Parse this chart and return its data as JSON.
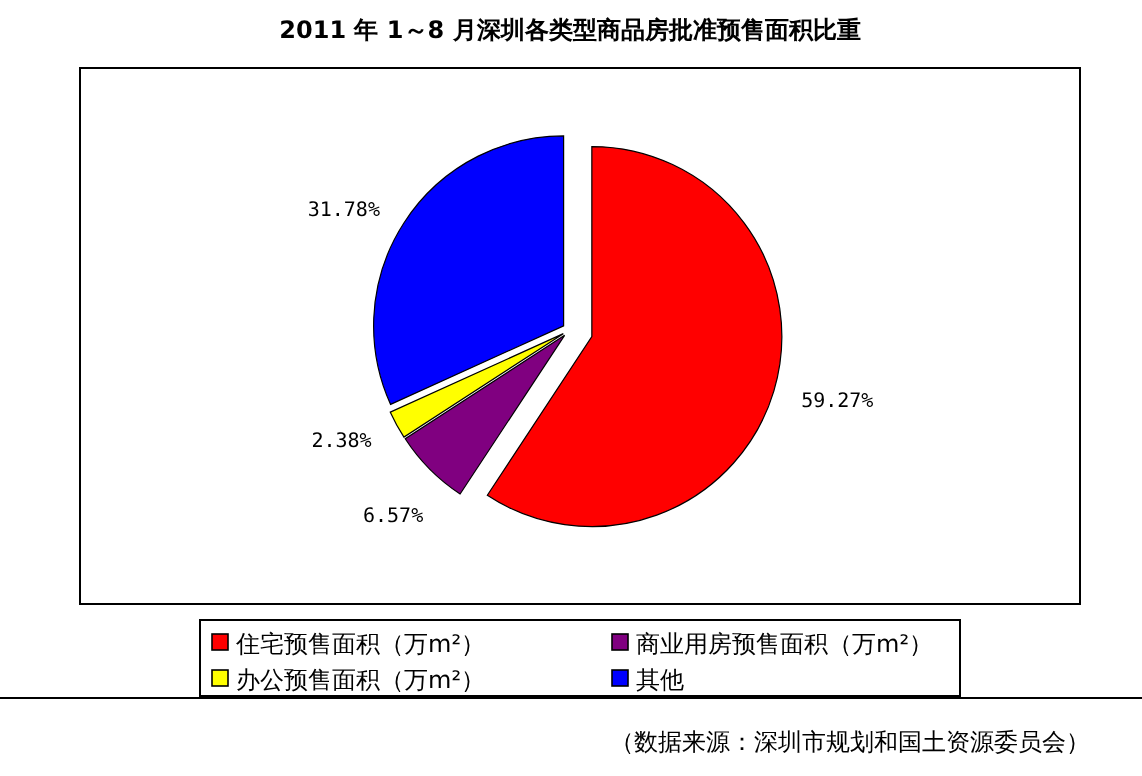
{
  "chart_data": {
    "type": "pie",
    "title": "2011 年 1～8 月深圳各类型商品房批准预售面积比重",
    "categories": [
      "住宅预售面积（万m²）",
      "商业用房预售面积（万m²）",
      "办公预售面积（万m²）",
      "其他"
    ],
    "values": [
      59.27,
      6.57,
      2.38,
      31.78
    ],
    "value_labels": [
      "59.27%",
      "6.57%",
      "2.38%",
      "31.78%"
    ],
    "colors": [
      "#ff0000",
      "#800080",
      "#ffff00",
      "#0000ff"
    ],
    "legend": "bottom",
    "annotations": [
      "（数据来源：深圳市规划和国土资源委员会）"
    ]
  }
}
